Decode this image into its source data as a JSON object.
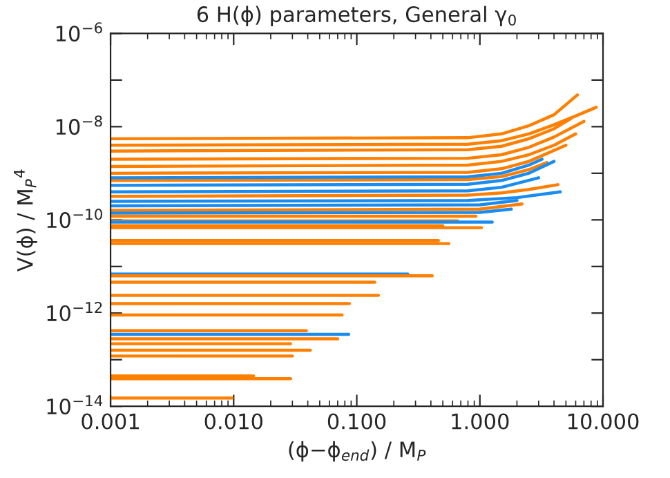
{
  "chart_data": {
    "type": "line",
    "title": "6 H(ϕ) parameters, General γ$_{0}$",
    "xlabel": "(ϕ−ϕ$_{end}$) / M$_{P}$",
    "ylabel": "V(ϕ) / M$_{P}$$^{4}$",
    "log": "xy",
    "xlim": [
      0.001,
      10.0
    ],
    "xticks": [
      0.001,
      {
        "value": 0.01,
        "label": "0.010"
      },
      {
        "value": 0.1,
        "label": "0.100"
      },
      {
        "value": 1,
        "label": "1.000"
      },
      {
        "value": 10,
        "label": "10.000"
      }
    ],
    "ylim": [
      1e-14,
      1e-06
    ],
    "yticks": [
      {
        "value": 1e-14,
        "label": "10$^{−14}$"
      },
      {
        "value": 1e-13,
        "label": null
      },
      {
        "value": 1e-12,
        "label": "10$^{−12}$"
      },
      {
        "value": 1e-11,
        "label": null
      },
      {
        "value": 1e-10,
        "label": "10$^{−10}$"
      },
      {
        "value": 1e-09,
        "label": null
      },
      {
        "value": 1e-08,
        "label": "10$^{−8}$"
      },
      {
        "value": 1e-07,
        "label": null
      },
      {
        "value": 1e-06,
        "label": "10$^{−6}$"
      }
    ],
    "line_style": "solid",
    "marker": "none",
    "series": [
      {
        "color": "#ff7f00",
        "x": [
          0.001,
          0.8,
          1.5,
          2.5,
          4,
          6.2
        ],
        "values": [
          5.5e-09,
          5.8e-09,
          7e-09,
          1.05e-08,
          1.8e-08,
          4.8e-08
        ]
      },
      {
        "color": "#ff7f00",
        "x": [
          0.001,
          0.8,
          1.5,
          2.5,
          4,
          6,
          8.8
        ],
        "values": [
          4e-09,
          4.2e-09,
          5e-09,
          7e-09,
          1.1e-08,
          1.7e-08,
          2.6e-08
        ]
      },
      {
        "color": "#ff7f00",
        "x": [
          0.001,
          0.8,
          1.5,
          2.5,
          4,
          5.5
        ],
        "values": [
          3e-09,
          3.2e-09,
          3.8e-09,
          5.5e-09,
          9e-09,
          1.5e-08
        ]
      },
      {
        "color": "#ff7f00",
        "x": [
          0.001,
          0.8,
          1.5,
          2.5,
          4,
          7
        ],
        "values": [
          2e-09,
          2.1e-09,
          2.5e-09,
          3.6e-09,
          6e-09,
          1.3e-08
        ]
      },
      {
        "color": "#ff7f00",
        "x": [
          0.001,
          0.8,
          1.5,
          2.5,
          4,
          6
        ],
        "values": [
          1.4e-09,
          1.5e-09,
          1.8e-09,
          2.5e-09,
          4e-09,
          7e-09
        ]
      },
      {
        "color": "#ff7f00",
        "x": [
          0.001,
          0.8,
          1.5,
          2.5,
          5
        ],
        "values": [
          1e-09,
          1.05e-09,
          1.25e-09,
          1.8e-09,
          4e-09
        ]
      },
      {
        "color": "#ff7f00",
        "x": [
          0.001,
          0.8,
          1.5,
          2.5,
          3.5
        ],
        "values": [
          7e-10,
          7.3e-10,
          8.5e-10,
          1.2e-09,
          1.7e-09
        ]
      },
      {
        "color": "#1a8cf0",
        "x": [
          0.001,
          0.8,
          1.5,
          2.5,
          3.2
        ],
        "values": [
          8e-10,
          8.4e-10,
          1e-09,
          1.5e-09,
          2e-09
        ]
      },
      {
        "color": "#1a8cf0",
        "x": [
          0.001,
          0.8,
          1.5,
          2.5,
          4
        ],
        "values": [
          5.5e-10,
          5.8e-10,
          7e-10,
          1e-09,
          1.8e-09
        ]
      },
      {
        "color": "#1a8cf0",
        "x": [
          0.001,
          0.8,
          1.5,
          3
        ],
        "values": [
          4e-10,
          4.2e-10,
          5e-10,
          8e-10
        ]
      },
      {
        "color": "#ff7f00",
        "x": [
          0.001,
          0.8,
          1.5,
          2.5,
          4.3
        ],
        "values": [
          3.2e-10,
          3.4e-10,
          3.8e-10,
          4.5e-10,
          5.7e-10
        ]
      },
      {
        "color": "#1a8cf0",
        "x": [
          0.001,
          0.8,
          2,
          4.5
        ],
        "values": [
          2.5e-10,
          2.6e-10,
          3e-10,
          4e-10
        ]
      },
      {
        "color": "#1a8cf0",
        "x": [
          0.001,
          1,
          2
        ],
        "values": [
          2e-10,
          2.1e-10,
          2.6e-10
        ]
      },
      {
        "color": "#ff7f00",
        "x": [
          0.001,
          1,
          2.2
        ],
        "values": [
          1.6e-10,
          1.7e-10,
          2.2e-10
        ]
      },
      {
        "color": "#1a8cf0",
        "x": [
          0.001,
          1,
          1.8
        ],
        "values": [
          1.4e-10,
          1.45e-10,
          1.7e-10
        ]
      },
      {
        "color": "#ff7f00",
        "x": [
          0.001,
          0.93
        ],
        "values": [
          1.2e-10,
          1.2e-10
        ]
      },
      {
        "color": "#ff7f00",
        "x": [
          0.001,
          0.66
        ],
        "values": [
          9.5e-11,
          9.5e-11
        ]
      },
      {
        "color": "#1a8cf0",
        "x": [
          0.001,
          1.26
        ],
        "values": [
          9e-11,
          9e-11
        ]
      },
      {
        "color": "#ff7f00",
        "x": [
          0.001,
          0.5
        ],
        "values": [
          7.5e-11,
          7.5e-11
        ]
      },
      {
        "color": "#ff7f00",
        "x": [
          0.001,
          1.03
        ],
        "values": [
          6.8e-11,
          6.8e-11
        ]
      },
      {
        "color": "#ff7f00",
        "x": [
          0.001,
          0.46
        ],
        "values": [
          3.6e-11,
          3.6e-11
        ]
      },
      {
        "color": "#ff7f00",
        "x": [
          0.001,
          0.56
        ],
        "values": [
          3.1e-11,
          3.1e-11
        ]
      },
      {
        "color": "#1a8cf0",
        "x": [
          0.001,
          0.26
        ],
        "values": [
          6.9e-12,
          6.9e-12
        ]
      },
      {
        "color": "#ff7f00",
        "x": [
          0.001,
          0.41
        ],
        "values": [
          6.3e-12,
          6.3e-12
        ]
      },
      {
        "color": "#ff7f00",
        "x": [
          0.001,
          0.14
        ],
        "values": [
          4.6e-12,
          4.6e-12
        ]
      },
      {
        "color": "#ff7f00",
        "x": [
          0.001,
          0.15
        ],
        "values": [
          2.4e-12,
          2.4e-12
        ]
      },
      {
        "color": "#ff7f00",
        "x": [
          0.001,
          0.087
        ],
        "values": [
          1.6e-12,
          1.6e-12
        ]
      },
      {
        "color": "#ff7f00",
        "x": [
          0.001,
          0.076
        ],
        "values": [
          9.1e-13,
          9.1e-13
        ]
      },
      {
        "color": "#ff7f00",
        "x": [
          0.001,
          0.039
        ],
        "values": [
          4.2e-13,
          4.2e-13
        ]
      },
      {
        "color": "#1a8cf0",
        "x": [
          0.001,
          0.086
        ],
        "values": [
          3.5e-13,
          3.5e-13
        ]
      },
      {
        "color": "#ff7f00",
        "x": [
          0.001,
          0.07
        ],
        "values": [
          2.8e-13,
          2.8e-13
        ]
      },
      {
        "color": "#ff7f00",
        "x": [
          0.001,
          0.029
        ],
        "values": [
          2.2e-13,
          2.2e-13
        ]
      },
      {
        "color": "#ff7f00",
        "x": [
          0.001,
          0.042
        ],
        "values": [
          1.6e-13,
          1.6e-13
        ]
      },
      {
        "color": "#ff7f00",
        "x": [
          0.001,
          0.03
        ],
        "values": [
          1.2e-13,
          1.2e-13
        ]
      },
      {
        "color": "#ff7f00",
        "x": [
          0.001,
          0.0145
        ],
        "values": [
          4.5e-14,
          4.5e-14
        ]
      },
      {
        "color": "#ff7f00",
        "x": [
          0.001,
          0.029
        ],
        "values": [
          3.9e-14,
          3.9e-14
        ]
      },
      {
        "color": "#ff7f00",
        "x": [
          0.001,
          0.0097
        ],
        "values": [
          1.5e-14,
          1.5e-14
        ]
      }
    ]
  }
}
